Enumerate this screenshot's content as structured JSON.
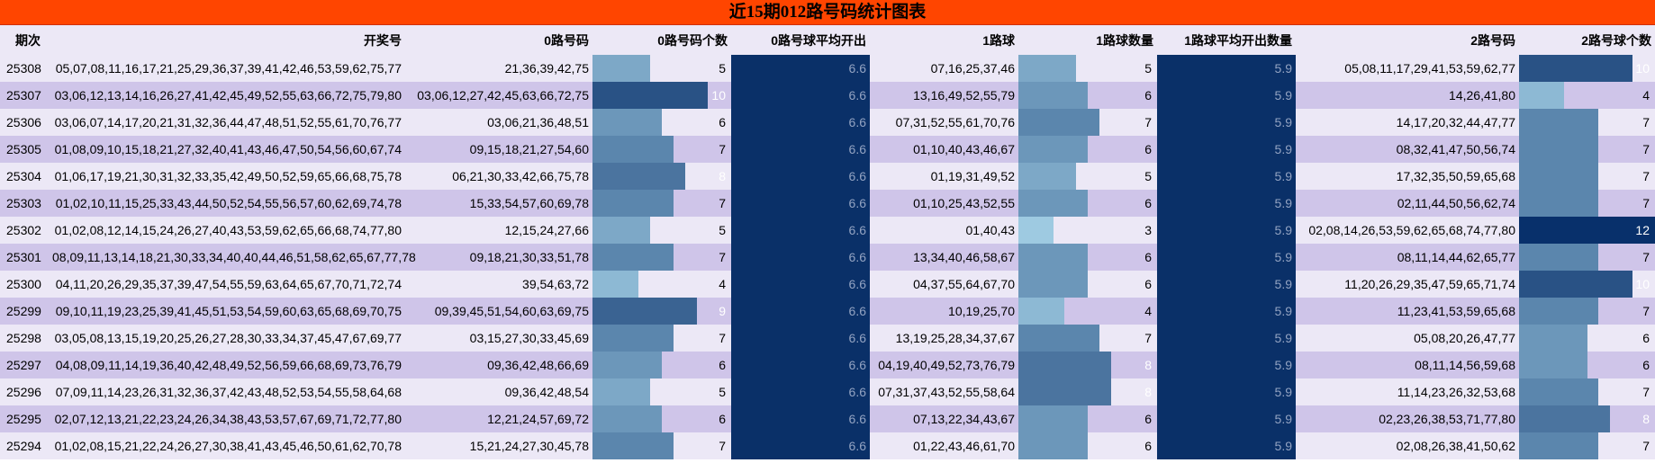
{
  "title": "近15期012路号码统计图表",
  "headers": [
    "期次",
    "开奖号",
    "0路号码",
    "0路号码个数",
    "0路号球平均开出",
    "1路球",
    "1路球数量",
    "1路球平均开出数量",
    "2路号码",
    "2路号球个数"
  ],
  "colors": {
    "title_bg": "#ff4500",
    "row_light": "#ece8f6",
    "row_dark": "#cfc5e9",
    "avg_bg": "#0a3068"
  },
  "scale": {
    "min": 3,
    "max": 12
  },
  "rows": [
    {
      "period": "25308",
      "numbers": "05,07,08,11,16,17,21,25,29,36,37,39,41,42,46,53,59,62,75,77",
      "r0": "21,36,39,42,75",
      "r0_count": "5",
      "r0_avg": "6.6",
      "r1": "07,16,25,37,46",
      "r1_count": "5",
      "r1_avg": "5.9",
      "r2": "05,08,11,17,29,41,53,59,62,77",
      "r2_count": "10"
    },
    {
      "period": "25307",
      "numbers": "03,06,12,13,14,16,26,27,41,42,45,49,52,55,63,66,72,75,79,80",
      "r0": "03,06,12,27,42,45,63,66,72,75",
      "r0_count": "10",
      "r0_avg": "6.6",
      "r1": "13,16,49,52,55,79",
      "r1_count": "6",
      "r1_avg": "5.9",
      "r2": "14,26,41,80",
      "r2_count": "4"
    },
    {
      "period": "25306",
      "numbers": "03,06,07,14,17,20,21,31,32,36,44,47,48,51,52,55,61,70,76,77",
      "r0": "03,06,21,36,48,51",
      "r0_count": "6",
      "r0_avg": "6.6",
      "r1": "07,31,52,55,61,70,76",
      "r1_count": "7",
      "r1_avg": "5.9",
      "r2": "14,17,20,32,44,47,77",
      "r2_count": "7"
    },
    {
      "period": "25305",
      "numbers": "01,08,09,10,15,18,21,27,32,40,41,43,46,47,50,54,56,60,67,74",
      "r0": "09,15,18,21,27,54,60",
      "r0_count": "7",
      "r0_avg": "6.6",
      "r1": "01,10,40,43,46,67",
      "r1_count": "6",
      "r1_avg": "5.9",
      "r2": "08,32,41,47,50,56,74",
      "r2_count": "7"
    },
    {
      "period": "25304",
      "numbers": "01,06,17,19,21,30,31,32,33,35,42,49,50,52,59,65,66,68,75,78",
      "r0": "06,21,30,33,42,66,75,78",
      "r0_count": "8",
      "r0_avg": "6.6",
      "r1": "01,19,31,49,52",
      "r1_count": "5",
      "r1_avg": "5.9",
      "r2": "17,32,35,50,59,65,68",
      "r2_count": "7"
    },
    {
      "period": "25303",
      "numbers": "01,02,10,11,15,25,33,43,44,50,52,54,55,56,57,60,62,69,74,78",
      "r0": "15,33,54,57,60,69,78",
      "r0_count": "7",
      "r0_avg": "6.6",
      "r1": "01,10,25,43,52,55",
      "r1_count": "6",
      "r1_avg": "5.9",
      "r2": "02,11,44,50,56,62,74",
      "r2_count": "7"
    },
    {
      "period": "25302",
      "numbers": "01,02,08,12,14,15,24,26,27,40,43,53,59,62,65,66,68,74,77,80",
      "r0": "12,15,24,27,66",
      "r0_count": "5",
      "r0_avg": "6.6",
      "r1": "01,40,43",
      "r1_count": "3",
      "r1_avg": "5.9",
      "r2": "02,08,14,26,53,59,62,65,68,74,77,80",
      "r2_count": "12"
    },
    {
      "period": "25301",
      "numbers": "08,09,11,13,14,18,21,30,33,34,40,40,44,46,51,58,62,65,67,77,78",
      "r0": "09,18,21,30,33,51,78",
      "r0_count": "7",
      "r0_avg": "6.6",
      "r1": "13,34,40,46,58,67",
      "r1_count": "6",
      "r1_avg": "5.9",
      "r2": "08,11,14,44,62,65,77",
      "r2_count": "7"
    },
    {
      "period": "25300",
      "numbers": "04,11,20,26,29,35,37,39,47,54,55,59,63,64,65,67,70,71,72,74",
      "r0": "39,54,63,72",
      "r0_count": "4",
      "r0_avg": "6.6",
      "r1": "04,37,55,64,67,70",
      "r1_count": "6",
      "r1_avg": "5.9",
      "r2": "11,20,26,29,35,47,59,65,71,74",
      "r2_count": "10"
    },
    {
      "period": "25299",
      "numbers": "09,10,11,19,23,25,39,41,45,51,53,54,59,60,63,65,68,69,70,75",
      "r0": "09,39,45,51,54,60,63,69,75",
      "r0_count": "9",
      "r0_avg": "6.6",
      "r1": "10,19,25,70",
      "r1_count": "4",
      "r1_avg": "5.9",
      "r2": "11,23,41,53,59,65,68",
      "r2_count": "7"
    },
    {
      "period": "25298",
      "numbers": "03,05,08,13,15,19,20,25,26,27,28,30,33,34,37,45,47,67,69,77",
      "r0": "03,15,27,30,33,45,69",
      "r0_count": "7",
      "r0_avg": "6.6",
      "r1": "13,19,25,28,34,37,67",
      "r1_count": "7",
      "r1_avg": "5.9",
      "r2": "05,08,20,26,47,77",
      "r2_count": "6"
    },
    {
      "period": "25297",
      "numbers": "04,08,09,11,14,19,36,40,42,48,49,52,56,59,66,68,69,73,76,79",
      "r0": "09,36,42,48,66,69",
      "r0_count": "6",
      "r0_avg": "6.6",
      "r1": "04,19,40,49,52,73,76,79",
      "r1_count": "8",
      "r1_avg": "5.9",
      "r2": "08,11,14,56,59,68",
      "r2_count": "6"
    },
    {
      "period": "25296",
      "numbers": "07,09,11,14,23,26,31,32,36,37,42,43,48,52,53,54,55,58,64,68",
      "r0": "09,36,42,48,54",
      "r0_count": "5",
      "r0_avg": "6.6",
      "r1": "07,31,37,43,52,55,58,64",
      "r1_count": "8",
      "r1_avg": "5.9",
      "r2": "11,14,23,26,32,53,68",
      "r2_count": "7"
    },
    {
      "period": "25295",
      "numbers": "02,07,12,13,21,22,23,24,26,34,38,43,53,57,67,69,71,72,77,80",
      "r0": "12,21,24,57,69,72",
      "r0_count": "6",
      "r0_avg": "6.6",
      "r1": "07,13,22,34,43,67",
      "r1_count": "6",
      "r1_avg": "5.9",
      "r2": "02,23,26,38,53,71,77,80",
      "r2_count": "8"
    },
    {
      "period": "25294",
      "numbers": "01,02,08,15,21,22,24,26,27,30,38,41,43,45,46,50,61,62,70,78",
      "r0": "15,21,24,27,30,45,78",
      "r0_count": "7",
      "r0_avg": "6.6",
      "r1": "01,22,43,46,61,70",
      "r1_count": "6",
      "r1_avg": "5.9",
      "r2": "02,08,26,38,41,50,62",
      "r2_count": "7"
    }
  ]
}
